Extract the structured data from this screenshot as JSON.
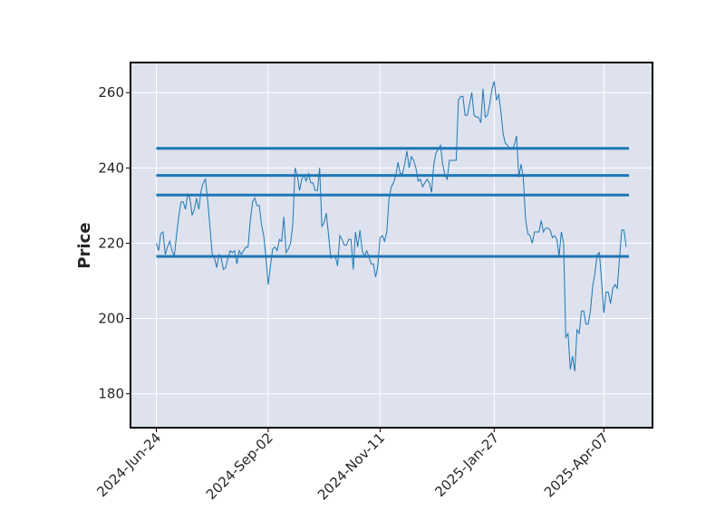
{
  "chart_data": {
    "type": "line",
    "title": "",
    "xlabel": "",
    "ylabel": "Price",
    "ylim": [
      171,
      268
    ],
    "yticks": [
      180,
      200,
      220,
      240,
      260
    ],
    "xticks": [
      {
        "label": "2024-Jun-24",
        "index": 0
      },
      {
        "label": "2024-Sep-02",
        "index": 50
      },
      {
        "label": "2024-Nov-11",
        "index": 100
      },
      {
        "label": "2025-Jan-27",
        "index": 151
      },
      {
        "label": "2025-Apr-07",
        "index": 200
      }
    ],
    "grid": true,
    "colors": {
      "background": "#dde2ee",
      "line": "#1f77b4",
      "grid": "#ffffff",
      "frame": "#000000"
    },
    "series": [
      {
        "style": "thin-line",
        "values": [
          220,
          218,
          222.5,
          223,
          217,
          219,
          220.5,
          218,
          216.5,
          222,
          227,
          231,
          231,
          229,
          233,
          232,
          227.5,
          229,
          232,
          229,
          234,
          236,
          237,
          231,
          224,
          217,
          216,
          213.5,
          217,
          216,
          213,
          213.5,
          216,
          218,
          217.5,
          218,
          214.5,
          218,
          217,
          218,
          219,
          219,
          226,
          231,
          232,
          230,
          230,
          225,
          222,
          216,
          209,
          214,
          218.5,
          219,
          218,
          221,
          220.5,
          227,
          217.5,
          218.5,
          220,
          225,
          240,
          238,
          234,
          237,
          238,
          236.5,
          238.5,
          236,
          236,
          234,
          234,
          240,
          224.5,
          225.5,
          228,
          222,
          216,
          216.5,
          216.5,
          214,
          222,
          221,
          219.5,
          219.5,
          221,
          221,
          213,
          223,
          219,
          223.5,
          218,
          216.5,
          218,
          216.5,
          214.5,
          214.5,
          211,
          214,
          221.5,
          222,
          220.5,
          223,
          232,
          235,
          236,
          238,
          241.5,
          238.5,
          238.5,
          241,
          244.5,
          240,
          243,
          242,
          240,
          236.5,
          237,
          235,
          236,
          237,
          236,
          233.5,
          241,
          244,
          245,
          246,
          241,
          238,
          237,
          242,
          242,
          242,
          242,
          258,
          259,
          259,
          254,
          254,
          257,
          260,
          254,
          253.5,
          253.5,
          252,
          261,
          253.5,
          254,
          257,
          261,
          263,
          258,
          259.5,
          255,
          249,
          246.5,
          246,
          245,
          245,
          246,
          248.5,
          237.5,
          241,
          237.5,
          226.5,
          222.5,
          222,
          220,
          223,
          223,
          223,
          226,
          223,
          224,
          224,
          223.5,
          221.5,
          222,
          221,
          216.5,
          223,
          220,
          195,
          196,
          186.5,
          190,
          186,
          197,
          196,
          202,
          202,
          198.5,
          198.5,
          202,
          208.5,
          212,
          217,
          217.5,
          210,
          201.5,
          207,
          207,
          204,
          208,
          209,
          208,
          216,
          223.5,
          223.5,
          219
        ]
      },
      {
        "style": "level",
        "value": 245.2
      },
      {
        "style": "level",
        "value": 238.0
      },
      {
        "style": "level",
        "value": 232.8
      },
      {
        "style": "level",
        "value": 216.5
      }
    ]
  }
}
